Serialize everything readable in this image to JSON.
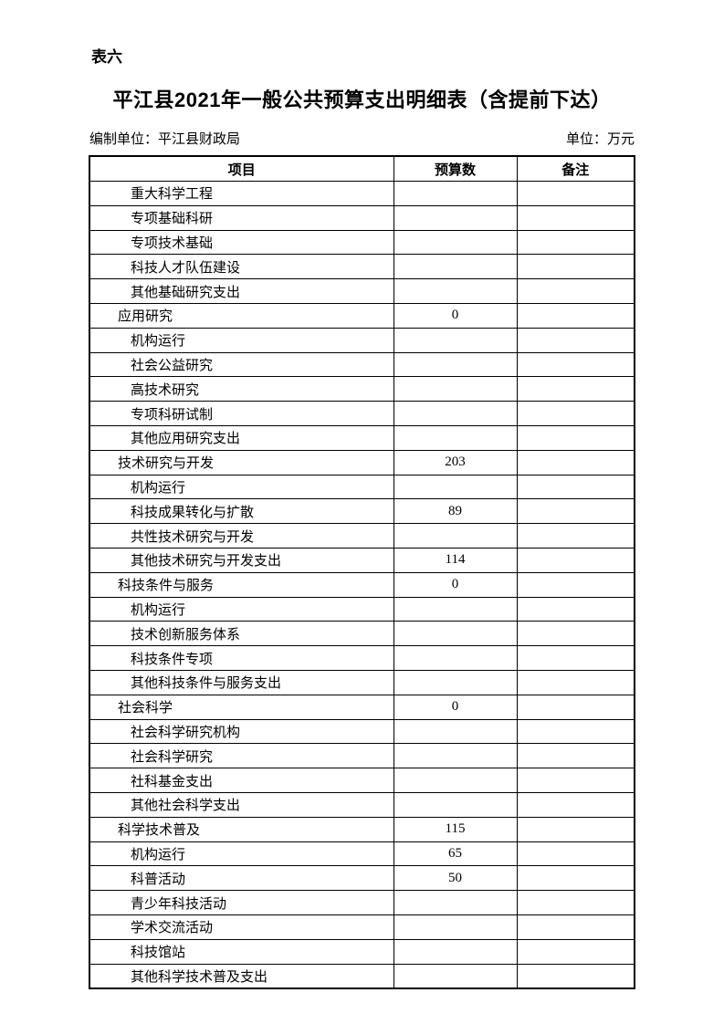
{
  "page": {
    "table_label": "表六",
    "title": "平江县2021年一般公共预算支出明细表（含提前下达）",
    "prepared_by": "编制单位：平江县财政局",
    "unit": "单位：万元"
  },
  "table": {
    "columns": [
      "项目",
      "预算数",
      "备注"
    ],
    "rows": [
      {
        "item": "重大科学工程",
        "level": 2,
        "budget": "",
        "note": ""
      },
      {
        "item": "专项基础科研",
        "level": 2,
        "budget": "",
        "note": ""
      },
      {
        "item": "专项技术基础",
        "level": 2,
        "budget": "",
        "note": ""
      },
      {
        "item": "科技人才队伍建设",
        "level": 2,
        "budget": "",
        "note": ""
      },
      {
        "item": "其他基础研究支出",
        "level": 2,
        "budget": "",
        "note": ""
      },
      {
        "item": "应用研究",
        "level": 1,
        "budget": "0",
        "note": ""
      },
      {
        "item": "机构运行",
        "level": 2,
        "budget": "",
        "note": ""
      },
      {
        "item": "社会公益研究",
        "level": 2,
        "budget": "",
        "note": ""
      },
      {
        "item": "高技术研究",
        "level": 2,
        "budget": "",
        "note": ""
      },
      {
        "item": "专项科研试制",
        "level": 2,
        "budget": "",
        "note": ""
      },
      {
        "item": "其他应用研究支出",
        "level": 2,
        "budget": "",
        "note": ""
      },
      {
        "item": "技术研究与开发",
        "level": 1,
        "budget": "203",
        "note": ""
      },
      {
        "item": "机构运行",
        "level": 2,
        "budget": "",
        "note": ""
      },
      {
        "item": "科技成果转化与扩散",
        "level": 2,
        "budget": "89",
        "note": ""
      },
      {
        "item": "共性技术研究与开发",
        "level": 2,
        "budget": "",
        "note": ""
      },
      {
        "item": "其他技术研究与开发支出",
        "level": 2,
        "budget": "114",
        "note": ""
      },
      {
        "item": "科技条件与服务",
        "level": 1,
        "budget": "0",
        "note": ""
      },
      {
        "item": "机构运行",
        "level": 2,
        "budget": "",
        "note": ""
      },
      {
        "item": "技术创新服务体系",
        "level": 2,
        "budget": "",
        "note": ""
      },
      {
        "item": "科技条件专项",
        "level": 2,
        "budget": "",
        "note": ""
      },
      {
        "item": "其他科技条件与服务支出",
        "level": 2,
        "budget": "",
        "note": ""
      },
      {
        "item": "社会科学",
        "level": 1,
        "budget": "0",
        "note": ""
      },
      {
        "item": "社会科学研究机构",
        "level": 2,
        "budget": "",
        "note": ""
      },
      {
        "item": "社会科学研究",
        "level": 2,
        "budget": "",
        "note": ""
      },
      {
        "item": "社科基金支出",
        "level": 2,
        "budget": "",
        "note": ""
      },
      {
        "item": "其他社会科学支出",
        "level": 2,
        "budget": "",
        "note": ""
      },
      {
        "item": "科学技术普及",
        "level": 1,
        "budget": "115",
        "note": ""
      },
      {
        "item": "机构运行",
        "level": 2,
        "budget": "65",
        "note": ""
      },
      {
        "item": "科普活动",
        "level": 2,
        "budget": "50",
        "note": ""
      },
      {
        "item": "青少年科技活动",
        "level": 2,
        "budget": "",
        "note": ""
      },
      {
        "item": "学术交流活动",
        "level": 2,
        "budget": "",
        "note": ""
      },
      {
        "item": "科技馆站",
        "level": 2,
        "budget": "",
        "note": ""
      },
      {
        "item": "其他科学技术普及支出",
        "level": 2,
        "budget": "",
        "note": ""
      }
    ]
  }
}
